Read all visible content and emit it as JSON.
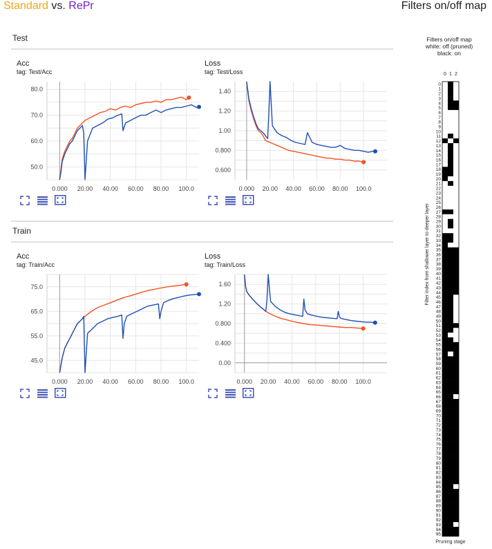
{
  "header": {
    "standard": "Standard",
    "vs": " vs. ",
    "repr": "RePr",
    "right_title": "Filters on/off map"
  },
  "colors": {
    "standard": "#e6a817",
    "repr": "#6a1fd1",
    "series_standard": "#f4511e",
    "series_repr": "#1e4fb5",
    "icon": "#3f51b5"
  },
  "sections": {
    "test": "Test",
    "train": "Train"
  },
  "cards": [
    {
      "name": "Acc",
      "tag": "tag: Test/Acc"
    },
    {
      "name": "Loss",
      "tag": "tag: Test/Loss"
    },
    {
      "name": "Acc",
      "tag": "tag: Train/Acc"
    },
    {
      "name": "Loss",
      "tag": "tag: Train/Loss"
    }
  ],
  "icons": [
    "expand-icon",
    "list-icon",
    "fit-domain-icon"
  ],
  "chart_data": [
    {
      "type": "line",
      "title": "Acc",
      "xlim": [
        -10,
        110
      ],
      "ylim": [
        45,
        83
      ],
      "xticks": [
        "0.000",
        "20.00",
        "40.00",
        "60.00",
        "80.00",
        "100.0"
      ],
      "yticks": [
        "50.0",
        "60.0",
        "70.0",
        "80.0"
      ],
      "ytick_values": [
        50,
        60,
        70,
        80
      ],
      "series": [
        {
          "color_key": "series_standard",
          "x": [
            0,
            1,
            2,
            4,
            6,
            8,
            10,
            12,
            14,
            16,
            18,
            20,
            24,
            28,
            32,
            36,
            40,
            44,
            48,
            52,
            56,
            60,
            64,
            68,
            72,
            76,
            80,
            84,
            88,
            92,
            96,
            100,
            102
          ],
          "y": [
            45,
            49,
            53,
            56,
            58,
            60,
            61,
            63,
            65,
            66,
            67,
            68,
            69,
            70,
            71,
            71.5,
            72.5,
            72,
            73,
            73.5,
            73,
            74,
            74.5,
            75,
            75,
            75.5,
            75,
            76,
            76,
            76.5,
            77,
            76,
            76.8
          ]
        },
        {
          "color_key": "series_repr",
          "x": [
            0,
            1,
            2,
            4,
            6,
            8,
            10,
            12,
            14,
            16,
            18,
            19,
            20,
            22,
            26,
            30,
            34,
            38,
            42,
            46,
            49,
            50,
            52,
            56,
            60,
            64,
            68,
            72,
            76,
            80,
            84,
            88,
            92,
            96,
            100,
            104,
            108,
            110
          ],
          "y": [
            45,
            48,
            52,
            55,
            57,
            59,
            60,
            62,
            64,
            65,
            66,
            63,
            45,
            60,
            65,
            66,
            67,
            68.5,
            69,
            70,
            70.5,
            64,
            67,
            68,
            69,
            70,
            70,
            71,
            72,
            71,
            72,
            72.5,
            73,
            73,
            73.5,
            74,
            73,
            73.2
          ]
        }
      ]
    },
    {
      "type": "line",
      "title": "Loss",
      "xlim": [
        -10,
        120
      ],
      "ylim": [
        0.5,
        1.5
      ],
      "xticks": [
        "0.000",
        "20.00",
        "40.00",
        "60.00",
        "80.00",
        "100.0"
      ],
      "yticks": [
        "0.600",
        "0.800",
        "1.00",
        "1.20",
        "1.40"
      ],
      "ytick_values": [
        0.6,
        0.8,
        1.0,
        1.2,
        1.4
      ],
      "series": [
        {
          "color_key": "series_standard",
          "x": [
            0,
            2,
            4,
            6,
            8,
            10,
            12,
            14,
            16,
            20,
            24,
            28,
            32,
            36,
            40,
            44,
            48,
            52,
            56,
            60,
            64,
            68,
            72,
            76,
            80,
            84,
            88,
            92,
            96,
            100
          ],
          "y": [
            1.5,
            1.3,
            1.2,
            1.12,
            1.05,
            1.0,
            0.98,
            0.95,
            0.9,
            0.88,
            0.86,
            0.84,
            0.82,
            0.8,
            0.79,
            0.78,
            0.77,
            0.76,
            0.75,
            0.74,
            0.73,
            0.72,
            0.72,
            0.71,
            0.71,
            0.7,
            0.7,
            0.69,
            0.69,
            0.68
          ]
        },
        {
          "color_key": "series_repr",
          "x": [
            0,
            2,
            4,
            6,
            8,
            10,
            12,
            14,
            16,
            18,
            19,
            20,
            22,
            26,
            30,
            34,
            38,
            42,
            46,
            50,
            52,
            56,
            60,
            64,
            68,
            72,
            76,
            80,
            84,
            88,
            92,
            96,
            100,
            104,
            108,
            110
          ],
          "y": [
            1.5,
            1.32,
            1.22,
            1.14,
            1.07,
            1.02,
            1.0,
            0.98,
            0.95,
            0.92,
            1.2,
            1.5,
            1.05,
            0.98,
            0.95,
            0.93,
            0.9,
            0.88,
            0.87,
            0.86,
            0.98,
            0.88,
            0.86,
            0.85,
            0.84,
            0.83,
            0.83,
            0.85,
            0.82,
            0.81,
            0.8,
            0.8,
            0.79,
            0.78,
            0.79,
            0.79
          ]
        }
      ]
    },
    {
      "type": "line",
      "title": "Acc",
      "xlim": [
        -10,
        110
      ],
      "ylim": [
        40,
        80
      ],
      "xticks": [
        "0.000",
        "20.00",
        "40.00",
        "60.00",
        "80.00",
        "100.0"
      ],
      "yticks": [
        "45.0",
        "55.0",
        "65.0",
        "75.0"
      ],
      "ytick_values": [
        45,
        55,
        65,
        75
      ],
      "series": [
        {
          "color_key": "series_standard",
          "x": [
            0,
            2,
            4,
            6,
            8,
            10,
            12,
            14,
            16,
            18,
            20,
            25,
            30,
            35,
            40,
            45,
            50,
            55,
            60,
            65,
            70,
            75,
            80,
            85,
            90,
            95,
            100
          ],
          "y": [
            40,
            46,
            50,
            52,
            54,
            56,
            58,
            60,
            61,
            62,
            63,
            65,
            66.5,
            67.5,
            68.5,
            69.5,
            70.5,
            71.2,
            72,
            72.8,
            73.5,
            74,
            74.5,
            75,
            75.3,
            75.6,
            76
          ]
        },
        {
          "color_key": "series_repr",
          "x": [
            0,
            2,
            4,
            6,
            8,
            10,
            12,
            14,
            16,
            18,
            19,
            20,
            22,
            26,
            30,
            34,
            38,
            42,
            46,
            49,
            50,
            51,
            53,
            57,
            61,
            65,
            69,
            73,
            78,
            79,
            80,
            82,
            86,
            90,
            94,
            98,
            102,
            106,
            110
          ],
          "y": [
            40,
            46,
            50,
            52,
            54,
            56,
            58,
            60,
            61,
            62,
            63,
            40,
            56,
            58,
            60,
            61,
            62,
            62.5,
            63,
            63.5,
            54,
            60,
            63,
            64,
            65,
            66,
            67,
            67.5,
            68,
            62,
            65,
            68.5,
            69.5,
            70.2,
            70.7,
            71.2,
            71.6,
            71.8,
            72
          ]
        }
      ]
    },
    {
      "type": "line",
      "title": "Loss",
      "xlim": [
        -8,
        120
      ],
      "ylim": [
        -0.2,
        1.8
      ],
      "xticks": [
        "0.000",
        "20.00",
        "40.00",
        "60.00",
        "80.00",
        "100.0"
      ],
      "yticks": [
        "0.00",
        "0.400",
        "0.800",
        "1.20",
        "1.60"
      ],
      "ytick_values": [
        0,
        0.4,
        0.8,
        1.2,
        1.6
      ],
      "series": [
        {
          "color_key": "series_standard",
          "x": [
            0,
            1,
            2,
            4,
            6,
            8,
            10,
            12,
            14,
            16,
            18,
            20,
            25,
            30,
            35,
            40,
            45,
            50,
            55,
            60,
            65,
            70,
            75,
            80,
            85,
            90,
            95,
            100
          ],
          "y": [
            1.8,
            1.55,
            1.45,
            1.38,
            1.32,
            1.27,
            1.22,
            1.17,
            1.13,
            1.09,
            1.05,
            1.02,
            0.96,
            0.91,
            0.88,
            0.85,
            0.82,
            0.8,
            0.78,
            0.77,
            0.76,
            0.75,
            0.74,
            0.73,
            0.72,
            0.72,
            0.71,
            0.7
          ]
        },
        {
          "color_key": "series_repr",
          "x": [
            0,
            1,
            2,
            4,
            6,
            8,
            10,
            12,
            14,
            16,
            18,
            19,
            20,
            22,
            26,
            30,
            34,
            38,
            42,
            46,
            49,
            50,
            51,
            53,
            57,
            61,
            65,
            69,
            73,
            78,
            79,
            80,
            82,
            86,
            90,
            94,
            98,
            102,
            106,
            110
          ],
          "y": [
            1.8,
            1.55,
            1.45,
            1.38,
            1.32,
            1.27,
            1.22,
            1.17,
            1.13,
            1.09,
            1.05,
            1.3,
            1.8,
            1.25,
            1.15,
            1.08,
            1.03,
            1.0,
            0.98,
            0.96,
            0.95,
            1.3,
            1.08,
            1.0,
            0.97,
            0.95,
            0.93,
            0.92,
            0.91,
            0.9,
            1.05,
            0.93,
            0.9,
            0.88,
            0.86,
            0.85,
            0.84,
            0.83,
            0.83,
            0.82
          ]
        }
      ]
    },
    {
      "type": "heatmap",
      "title": "Filters on/off map",
      "header_lines": [
        "Filters on/off map",
        "white: off (pruned)",
        "black: on"
      ],
      "ylabel": "Filter index from shallower layer to deeper layer",
      "xlabel": "Pruning stage",
      "columns": [
        "0",
        "1",
        "2"
      ],
      "rows": 96,
      "white_cells": [
        [
          0,
          0
        ],
        [
          0,
          2
        ],
        [
          1,
          0
        ],
        [
          1,
          2
        ],
        [
          2,
          0
        ],
        [
          2,
          2
        ],
        [
          3,
          0
        ],
        [
          3,
          2
        ],
        [
          4,
          0
        ],
        [
          5,
          0
        ],
        [
          6,
          0
        ],
        [
          6,
          1
        ],
        [
          6,
          2
        ],
        [
          7,
          0
        ],
        [
          7,
          1
        ],
        [
          7,
          2
        ],
        [
          8,
          0
        ],
        [
          8,
          1
        ],
        [
          8,
          2
        ],
        [
          9,
          0
        ],
        [
          9,
          1
        ],
        [
          9,
          2
        ],
        [
          10,
          0
        ],
        [
          10,
          1
        ],
        [
          10,
          2
        ],
        [
          11,
          0
        ],
        [
          11,
          2
        ],
        [
          12,
          1
        ],
        [
          13,
          0
        ],
        [
          13,
          2
        ],
        [
          14,
          0
        ],
        [
          14,
          2
        ],
        [
          15,
          0
        ],
        [
          15,
          2
        ],
        [
          16,
          0
        ],
        [
          16,
          2
        ],
        [
          17,
          0
        ],
        [
          17,
          2
        ],
        [
          18,
          2
        ],
        [
          19,
          2
        ],
        [
          20,
          1
        ],
        [
          20,
          2
        ],
        [
          21,
          0
        ],
        [
          21,
          2
        ],
        [
          22,
          0
        ],
        [
          22,
          1
        ],
        [
          22,
          2
        ],
        [
          23,
          0
        ],
        [
          23,
          1
        ],
        [
          23,
          2
        ],
        [
          24,
          0
        ],
        [
          24,
          1
        ],
        [
          24,
          2
        ],
        [
          25,
          0
        ],
        [
          25,
          1
        ],
        [
          25,
          2
        ],
        [
          26,
          0
        ],
        [
          26,
          1
        ],
        [
          26,
          2
        ],
        [
          27,
          2
        ],
        [
          28,
          0
        ],
        [
          28,
          1
        ],
        [
          28,
          2
        ],
        [
          29,
          0
        ],
        [
          29,
          2
        ],
        [
          30,
          0
        ],
        [
          30,
          2
        ],
        [
          31,
          0
        ],
        [
          31,
          1
        ],
        [
          31,
          2
        ],
        [
          32,
          2
        ],
        [
          33,
          2
        ],
        [
          34,
          1
        ],
        [
          34,
          2
        ],
        [
          45,
          2
        ],
        [
          46,
          2
        ],
        [
          47,
          2
        ],
        [
          48,
          2
        ],
        [
          49,
          2
        ],
        [
          50,
          2
        ],
        [
          52,
          2
        ],
        [
          53,
          1
        ],
        [
          53,
          2
        ],
        [
          54,
          2
        ],
        [
          57,
          1
        ],
        [
          66,
          2
        ],
        [
          85,
          2
        ],
        [
          93,
          2
        ]
      ]
    }
  ]
}
